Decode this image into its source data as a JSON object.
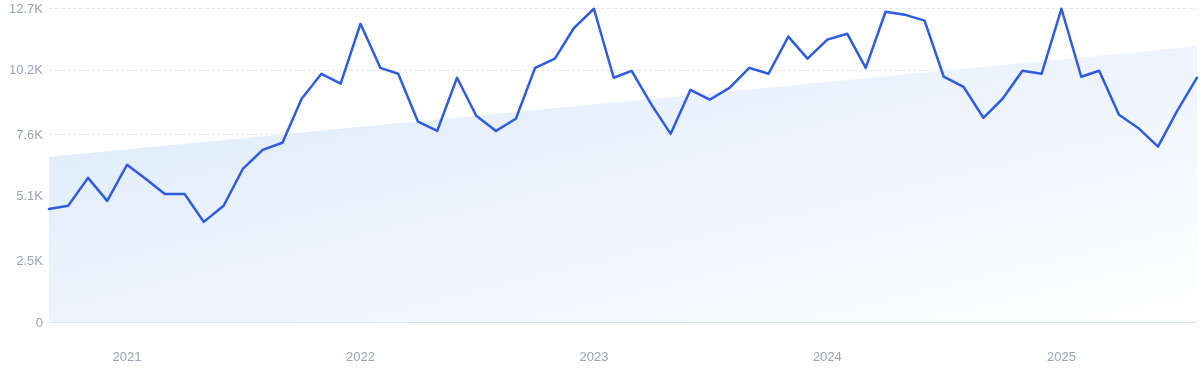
{
  "chart_data": {
    "type": "line",
    "xlim": [
      "2020-09",
      "2025-08"
    ],
    "xticks": [
      {
        "value": "2021-01",
        "label": "2021"
      },
      {
        "value": "2022-01",
        "label": "2022"
      },
      {
        "value": "2023-01",
        "label": "2023"
      },
      {
        "value": "2024-01",
        "label": "2024"
      },
      {
        "value": "2025-01",
        "label": "2025"
      }
    ],
    "ylim": [
      0,
      12700
    ],
    "yticks": [
      0,
      {
        "value": 2500,
        "label": "2.5K"
      },
      {
        "value": 5100,
        "label": "5.1K"
      },
      {
        "value": 7600,
        "label": "7.6K"
      },
      {
        "value": 10200,
        "label": "10.2K"
      },
      {
        "value": 12700,
        "label": "12.7K"
      }
    ],
    "grid": "y",
    "marker": "none",
    "line_style": "solid",
    "series": [
      {
        "type": "area",
        "color": "#dbe9fb",
        "x": [
          "2020-09",
          "2025-08"
        ],
        "values": [
          6680,
          11150
        ]
      },
      {
        "color": "#2f5be0",
        "x": [
          "2020-09",
          "2020-10",
          "2020-11",
          "2020-12",
          "2021-01",
          "2021-02",
          "2021-03",
          "2021-04",
          "2021-05",
          "2021-06",
          "2021-07",
          "2021-08",
          "2021-09",
          "2021-10",
          "2021-11",
          "2021-12",
          "2022-01",
          "2022-02",
          "2022-03",
          "2022-04",
          "2022-05",
          "2022-06",
          "2022-07",
          "2022-08",
          "2022-09",
          "2022-10",
          "2022-11",
          "2022-12",
          "2023-01",
          "2023-02",
          "2023-03",
          "2023-04",
          "2023-05",
          "2023-06",
          "2023-07",
          "2023-08",
          "2023-09",
          "2023-10",
          "2023-11",
          "2023-12",
          "2024-01",
          "2024-02",
          "2024-03",
          "2024-04",
          "2024-05",
          "2024-06",
          "2024-07",
          "2024-08",
          "2024-09",
          "2024-10",
          "2024-11",
          "2024-12",
          "2025-01",
          "2025-02",
          "2025-03",
          "2025-04",
          "2025-05",
          "2025-06",
          "2025-07",
          "2025-08"
        ],
        "values": [
          4570,
          4700,
          5830,
          4900,
          6360,
          5750,
          5180,
          5180,
          4050,
          4700,
          6190,
          6960,
          7250,
          9030,
          10040,
          9640,
          12060,
          10280,
          10040,
          8100,
          7730,
          9880,
          8340,
          7730,
          8220,
          10280,
          10650,
          11900,
          12670,
          9880,
          10160,
          8790,
          7610,
          9390,
          8990,
          9470,
          10280,
          10040,
          11540,
          10650,
          11420,
          11660,
          10280,
          12550,
          12430,
          12190,
          9920,
          9510,
          8260,
          9030,
          10160,
          10040,
          12670,
          9920,
          10160,
          8380,
          7850,
          7090,
          8540,
          9880
        ]
      }
    ]
  }
}
